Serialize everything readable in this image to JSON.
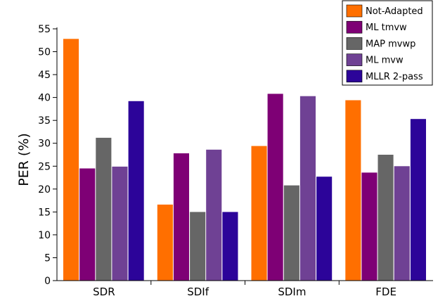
{
  "chart_data": {
    "type": "bar",
    "title": "",
    "xlabel": "",
    "ylabel": "PER (%)",
    "ylim": [
      0,
      55
    ],
    "yticks": [
      0,
      5,
      10,
      15,
      20,
      25,
      30,
      35,
      40,
      45,
      50,
      55
    ],
    "categories": [
      "SDR",
      "SDIf",
      "SDIm",
      "FDE"
    ],
    "legend_position": "top-right",
    "grid": false,
    "series": [
      {
        "name": "Not-Adapted",
        "color": "#ff6f00",
        "values": [
          52.8,
          16.6,
          29.4,
          39.4
        ]
      },
      {
        "name": "ML tmvw",
        "color": "#7e0075",
        "values": [
          24.5,
          27.8,
          40.8,
          23.6
        ]
      },
      {
        "name": "MAP mvwp",
        "color": "#666666",
        "values": [
          31.2,
          15.0,
          20.8,
          27.5
        ]
      },
      {
        "name": "ML mvw",
        "color": "#6f4194",
        "values": [
          24.9,
          28.6,
          40.3,
          25.0
        ]
      },
      {
        "name": "MLLR 2-pass",
        "color": "#2c0499",
        "values": [
          39.2,
          15.0,
          22.7,
          35.3
        ]
      }
    ]
  }
}
